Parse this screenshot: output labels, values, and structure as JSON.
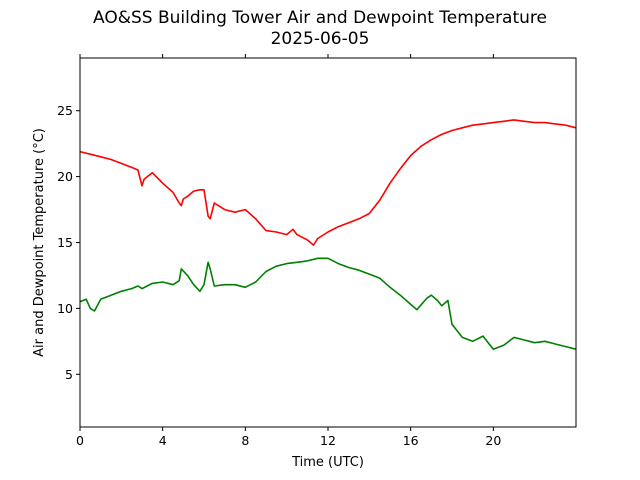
{
  "chart_data": {
    "type": "line",
    "title": "AO&SS Building Tower Air and Dewpoint Temperature",
    "subtitle": "2025-06-05",
    "xlabel": "Time (UTC)",
    "ylabel": "Air and Dewpoint Temperature (°C)",
    "xlim": [
      0,
      24
    ],
    "ylim": [
      1,
      29
    ],
    "xticks": [
      0,
      4,
      8,
      12,
      16,
      20
    ],
    "yticks": [
      5,
      10,
      15,
      20,
      25
    ],
    "grid": false,
    "legend": "none",
    "series": [
      {
        "color": "#ff0000",
        "x": [
          0,
          0.5,
          1,
          1.5,
          2,
          2.5,
          2.8,
          3.0,
          3.1,
          3.5,
          4,
          4.5,
          4.8,
          4.9,
          5.0,
          5.2,
          5.5,
          5.8,
          6.0,
          6.2,
          6.3,
          6.5,
          7,
          7.5,
          8,
          8.5,
          9,
          9.5,
          10,
          10.3,
          10.5,
          11,
          11.3,
          11.5,
          12,
          12.5,
          13,
          13.5,
          14,
          14.5,
          15,
          15.5,
          16,
          16.5,
          17,
          17.5,
          18,
          18.5,
          19,
          19.5,
          20,
          20.5,
          21,
          21.5,
          22,
          22.5,
          23,
          23.5,
          24
        ],
        "y": [
          21.9,
          21.7,
          21.5,
          21.3,
          21.0,
          20.7,
          20.5,
          19.3,
          19.8,
          20.3,
          19.5,
          18.8,
          18.0,
          17.8,
          18.3,
          18.5,
          18.9,
          19.0,
          19.0,
          17.0,
          16.8,
          18.0,
          17.5,
          17.3,
          17.5,
          16.8,
          15.9,
          15.8,
          15.6,
          16.0,
          15.6,
          15.2,
          14.8,
          15.3,
          15.8,
          16.2,
          16.5,
          16.8,
          17.2,
          18.2,
          19.5,
          20.6,
          21.6,
          22.3,
          22.8,
          23.2,
          23.5,
          23.7,
          23.9,
          24.0,
          24.1,
          24.2,
          24.3,
          24.2,
          24.1,
          24.1,
          24.0,
          23.9,
          23.7
        ]
      },
      {
        "color": "#008000",
        "x": [
          0,
          0.3,
          0.5,
          0.7,
          1,
          1.5,
          2,
          2.5,
          2.8,
          3,
          3.5,
          4,
          4.5,
          4.8,
          4.9,
          5.2,
          5.5,
          5.8,
          6.0,
          6.2,
          6.3,
          6.5,
          7,
          7.5,
          8,
          8.5,
          9,
          9.5,
          10,
          10.5,
          11,
          11.5,
          12,
          12.5,
          13,
          13.5,
          14,
          14.5,
          15,
          15.5,
          16,
          16.3,
          16.8,
          17.0,
          17.3,
          17.5,
          17.8,
          18.0,
          18.5,
          19,
          19.5,
          20,
          20.5,
          21,
          21.5,
          22,
          22.5,
          23,
          23.5,
          24
        ],
        "y": [
          10.5,
          10.7,
          10.0,
          9.8,
          10.7,
          11.0,
          11.3,
          11.5,
          11.7,
          11.5,
          11.9,
          12.0,
          11.8,
          12.1,
          13.0,
          12.5,
          11.8,
          11.3,
          11.8,
          13.5,
          13.0,
          11.7,
          11.8,
          11.8,
          11.6,
          12.0,
          12.8,
          13.2,
          13.4,
          13.5,
          13.6,
          13.8,
          13.8,
          13.4,
          13.1,
          12.9,
          12.6,
          12.3,
          11.6,
          11.0,
          10.3,
          9.9,
          10.8,
          11.0,
          10.6,
          10.2,
          10.6,
          8.8,
          7.8,
          7.5,
          7.9,
          6.9,
          7.2,
          7.8,
          7.6,
          7.4,
          7.5,
          7.3,
          7.1,
          6.9
        ]
      }
    ]
  }
}
